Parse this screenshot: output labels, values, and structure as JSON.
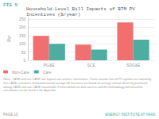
{
  "chart_data": {
    "type": "bar",
    "title": "Household-Level Bill Impacts of BTM PV\nIncentives ($/year)",
    "ylabel": "$/yr",
    "categories": [
      "PG&E",
      "SCE",
      "SDG&E"
    ],
    "series": [
      {
        "name": "Non-Care",
        "color": "#F07070",
        "values": [
          148,
          95,
          230
        ]
      },
      {
        "name": "Care",
        "color": "#4DADA0",
        "values": [
          100,
          65,
          125
        ]
      }
    ],
    "ylim": [
      0,
      260
    ],
    "yticks": [
      0,
      50,
      100,
      150,
      200,
      250
    ],
    "grid": true,
    "legend": "lower left",
    "annotations": [
      "FIG 5",
      "Notes: CARE and non-CARE rate impacts are authors' calculations. These assume that all PV systems are owned by non-CARE customers. Estimated annual average bill increases are based on average annual electricity purchases among CARE and non-CARE households. Further details on data sources and the methodology behind author calculations can be found in the Appendix.",
      "PAGE 10",
      "ENERGY INSTITUTE AT HAAS"
    ]
  }
}
